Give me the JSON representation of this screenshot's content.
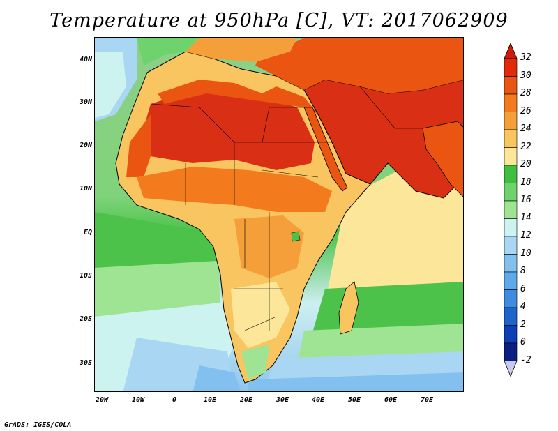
{
  "title": "Temperature at 950hPa [C], VT: 2017062909",
  "credit": "GrADS: IGES/COLA",
  "lat_labels": [
    "40N",
    "30N",
    "20N",
    "10N",
    "EQ",
    "10S",
    "20S",
    "30S"
  ],
  "lon_labels": [
    "20W",
    "10W",
    "0",
    "10E",
    "20E",
    "30E",
    "40E",
    "50E",
    "60E",
    "70E"
  ],
  "colorbar": {
    "labels": [
      "32",
      "30",
      "28",
      "26",
      "24",
      "22",
      "20",
      "18",
      "16",
      "14",
      "12",
      "10",
      "8",
      "6",
      "4",
      "2",
      "0",
      "-2"
    ],
    "colors": [
      "#e02a0a",
      "#ea5512",
      "#f37b1d",
      "#f59f3a",
      "#f8c560",
      "#fbe69a",
      "#3fbf3f",
      "#6ed36c",
      "#9ee493",
      "#cdf3f0",
      "#a9d7f3",
      "#82c1ef",
      "#5fa8ea",
      "#3e8be0",
      "#1f63cc",
      "#0c3fb3",
      "#0a1f80"
    ],
    "top_arrow_color": "#d01a08",
    "bottom_arrow_color": "#c8c8f0"
  }
}
